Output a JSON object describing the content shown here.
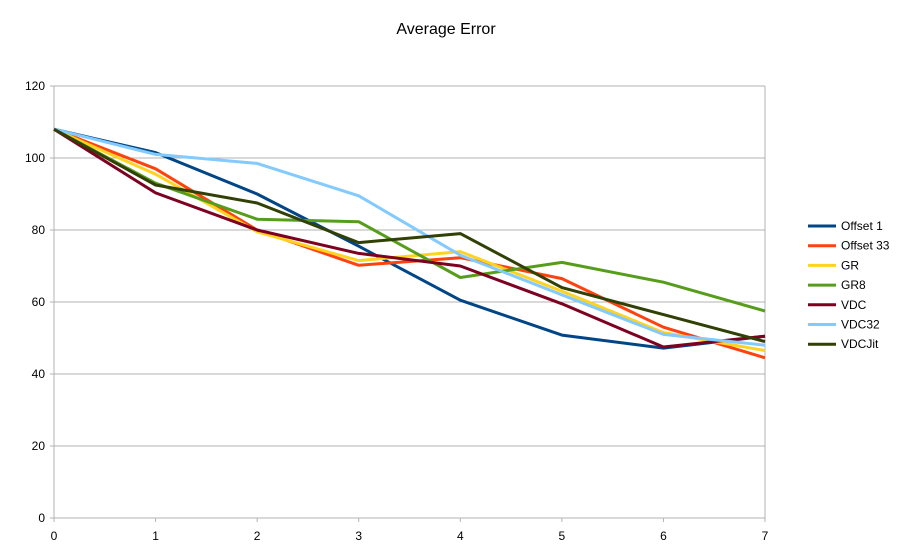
{
  "chart_data": {
    "type": "line",
    "title": "Average Error",
    "xlabel": "",
    "ylabel": "",
    "xlim": [
      0,
      7
    ],
    "ylim": [
      0,
      120
    ],
    "x": [
      0,
      1,
      2,
      3,
      4,
      5,
      6,
      7
    ],
    "x_ticks": [
      "0",
      "1",
      "2",
      "3",
      "4",
      "5",
      "6",
      "7"
    ],
    "y_ticks": [
      "0",
      "20",
      "40",
      "60",
      "80",
      "100",
      "120"
    ],
    "grid": "horizontal",
    "legend_position": "right",
    "series": [
      {
        "name": "Offset 1",
        "color": "#004586",
        "values": [
          108,
          101.5,
          90,
          75.5,
          60.5,
          50.8,
          47.2,
          50.5
        ]
      },
      {
        "name": "Offset 33",
        "color": "#ff420e",
        "values": [
          108,
          97,
          80,
          70.2,
          72.3,
          66.5,
          53,
          44.5
        ]
      },
      {
        "name": "GR",
        "color": "#ffd320",
        "values": [
          108,
          95.5,
          79.5,
          71.5,
          74,
          63,
          51.5,
          46.5
        ]
      },
      {
        "name": "GR8",
        "color": "#579d1c",
        "values": [
          108,
          93,
          83,
          82.3,
          66.8,
          71,
          65.5,
          57.5
        ]
      },
      {
        "name": "VDC",
        "color": "#7e0021",
        "values": [
          108,
          90.3,
          80,
          73.5,
          70,
          59.5,
          47.5,
          50.5
        ]
      },
      {
        "name": "VDC32",
        "color": "#83caff",
        "values": [
          108,
          101,
          98.5,
          89.5,
          73,
          62,
          51,
          48
        ]
      },
      {
        "name": "VDCJit",
        "color": "#314004",
        "values": [
          108,
          92.5,
          87.5,
          76.5,
          79,
          64,
          56.5,
          49
        ]
      }
    ]
  }
}
